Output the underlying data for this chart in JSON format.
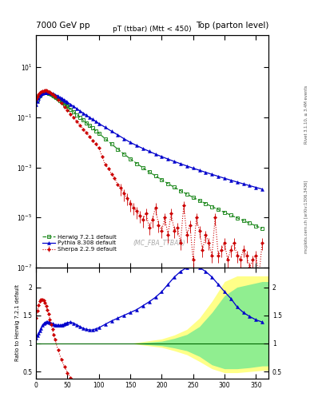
{
  "title_left": "7000 GeV pp",
  "title_right": "Top (parton level)",
  "plot_title": "pT (ttbar) (Mtt < 450)",
  "watermark": "(MC_FBA_TTBAR)",
  "right_label_top": "Rivet 3.1.10, ≥ 3.4M events",
  "right_label_bot": "mcplots.cern.ch [arXiv:1306.3436]",
  "ylabel_ratio": "Ratio to Herwig 7.2.1 default",
  "herwig_color": "#228B22",
  "pythia_color": "#0000CC",
  "sherpa_color": "#CC0000",
  "band_green": "#90EE90",
  "band_yellow": "#FFFF88",
  "xlim": [
    0,
    370
  ],
  "ylim_main": [
    1e-07,
    200
  ],
  "ratio_ylim": [
    0.38,
    2.35
  ],
  "ratio_yticks": [
    0.5,
    1.0,
    1.5,
    2.0
  ],
  "herwig_x": [
    0,
    2,
    4,
    6,
    8,
    10,
    12,
    14,
    16,
    18,
    20,
    22,
    24,
    26,
    28,
    30,
    32,
    34,
    36,
    38,
    40,
    42,
    44,
    46,
    48,
    50,
    55,
    60,
    65,
    70,
    75,
    80,
    85,
    90,
    95,
    100,
    110,
    120,
    130,
    140,
    150,
    160,
    170,
    180,
    190,
    200,
    210,
    220,
    230,
    240,
    250,
    260,
    270,
    280,
    290,
    300,
    310,
    320,
    330,
    340,
    350,
    360
  ],
  "herwig_y": [
    0.45,
    0.5,
    0.65,
    0.78,
    0.88,
    0.95,
    0.99,
    1.0,
    0.99,
    0.97,
    0.93,
    0.89,
    0.84,
    0.79,
    0.74,
    0.69,
    0.63,
    0.58,
    0.53,
    0.48,
    0.44,
    0.4,
    0.36,
    0.33,
    0.3,
    0.27,
    0.21,
    0.165,
    0.128,
    0.099,
    0.077,
    0.06,
    0.047,
    0.037,
    0.029,
    0.023,
    0.014,
    0.0086,
    0.0054,
    0.0034,
    0.0022,
    0.00145,
    0.00097,
    0.00066,
    0.00046,
    0.00032,
    0.000225,
    0.000161,
    0.000117,
    8.56e-05,
    6.34e-05,
    4.75e-05,
    3.58e-05,
    2.72e-05,
    2.08e-05,
    1.6e-05,
    1.24e-05,
    9.6e-06,
    7.5e-06,
    5.9e-06,
    4.6e-06,
    3.6e-06
  ],
  "pythia_x": [
    0,
    2,
    4,
    6,
    8,
    10,
    12,
    14,
    16,
    18,
    20,
    22,
    24,
    26,
    28,
    30,
    32,
    34,
    36,
    38,
    40,
    42,
    44,
    46,
    48,
    50,
    55,
    60,
    65,
    70,
    75,
    80,
    85,
    90,
    95,
    100,
    110,
    120,
    130,
    140,
    150,
    160,
    170,
    180,
    190,
    200,
    210,
    220,
    230,
    240,
    250,
    260,
    270,
    280,
    290,
    300,
    310,
    320,
    330,
    340,
    350,
    360
  ],
  "pythia_y": [
    0.32,
    0.42,
    0.58,
    0.72,
    0.84,
    0.92,
    0.97,
    1.0,
    1.0,
    0.99,
    0.97,
    0.94,
    0.91,
    0.87,
    0.83,
    0.79,
    0.74,
    0.7,
    0.65,
    0.61,
    0.57,
    0.53,
    0.5,
    0.46,
    0.43,
    0.4,
    0.33,
    0.27,
    0.22,
    0.18,
    0.148,
    0.122,
    0.1,
    0.083,
    0.069,
    0.057,
    0.04,
    0.028,
    0.02,
    0.014,
    0.01,
    0.0075,
    0.0057,
    0.0044,
    0.0034,
    0.0027,
    0.00215,
    0.00173,
    0.0014,
    0.00114,
    0.000934,
    0.00077,
    0.000637,
    0.000528,
    0.00044,
    0.000368,
    0.000309,
    0.00026,
    0.00022,
    0.000187,
    0.000159,
    0.000136
  ],
  "sherpa_x": [
    0,
    2,
    4,
    6,
    8,
    10,
    12,
    14,
    16,
    18,
    20,
    22,
    24,
    26,
    28,
    30,
    35,
    40,
    45,
    50,
    55,
    60,
    65,
    70,
    75,
    80,
    85,
    90,
    95,
    100,
    105,
    110,
    115,
    120,
    125,
    130,
    135,
    140,
    145,
    150,
    155,
    160,
    165,
    170,
    175,
    180,
    185,
    190,
    195,
    200,
    205,
    210,
    215,
    220,
    225,
    230,
    235,
    240,
    245,
    250,
    255,
    260,
    265,
    270,
    275,
    280,
    285,
    290,
    295,
    300,
    305,
    310,
    315,
    320,
    325,
    330,
    335,
    340,
    345,
    350,
    355,
    360
  ],
  "sherpa_y": [
    0.52,
    0.65,
    0.82,
    0.95,
    1.05,
    1.12,
    1.16,
    1.18,
    1.17,
    1.14,
    1.08,
    1.01,
    0.93,
    0.84,
    0.76,
    0.67,
    0.5,
    0.37,
    0.268,
    0.193,
    0.138,
    0.098,
    0.069,
    0.049,
    0.034,
    0.024,
    0.017,
    0.012,
    0.0085,
    0.006,
    0.0028,
    0.0013,
    0.0009,
    0.00055,
    0.00038,
    0.0002,
    0.00015,
    9e-05,
    6e-05,
    3.5e-05,
    2.5e-05,
    1.8e-05,
    1.2e-05,
    8e-06,
    1.5e-05,
    4e-06,
    8e-06,
    2.5e-05,
    5e-06,
    3e-06,
    1e-05,
    2e-06,
    1.5e-05,
    3e-06,
    4e-06,
    1e-06,
    3e-05,
    2e-06,
    5e-06,
    2e-07,
    1e-05,
    3e-06,
    5e-07,
    2e-06,
    1e-06,
    3e-07,
    1e-05,
    3e-07,
    5e-07,
    1e-06,
    2e-07,
    5e-07,
    1e-06,
    3e-07,
    2e-07,
    5e-07,
    3e-07,
    1e-07,
    2e-07,
    3e-07,
    5e-08,
    1e-06
  ],
  "sherpa_err": [
    0.04,
    0.04,
    0.04,
    0.04,
    0.04,
    0.04,
    0.04,
    0.04,
    0.04,
    0.04,
    0.04,
    0.04,
    0.04,
    0.04,
    0.04,
    0.04,
    0.04,
    0.04,
    0.04,
    0.04,
    0.04,
    0.04,
    0.04,
    0.04,
    0.04,
    0.04,
    0.04,
    0.04,
    0.04,
    0.04,
    0.04,
    0.04,
    0.04,
    0.04,
    0.04,
    0.04,
    0.5,
    0.5,
    0.5,
    0.5,
    0.5,
    0.5,
    0.5,
    0.5,
    0.5,
    0.5,
    0.5,
    0.5,
    0.5,
    0.5,
    0.5,
    0.5,
    0.5,
    0.5,
    0.5,
    0.5,
    0.5,
    0.5,
    0.5,
    0.5,
    0.5,
    0.5,
    0.5,
    0.5,
    0.5,
    0.5,
    0.5,
    0.5,
    0.5,
    0.5,
    0.5,
    0.5,
    0.5,
    0.5,
    0.5,
    0.5,
    0.5,
    0.5,
    0.5,
    0.5,
    0.5,
    0.5
  ],
  "ratio_pythia_x": [
    0,
    2,
    4,
    6,
    8,
    10,
    12,
    14,
    16,
    18,
    20,
    22,
    24,
    26,
    28,
    30,
    32,
    34,
    36,
    38,
    40,
    42,
    44,
    46,
    48,
    50,
    55,
    60,
    65,
    70,
    75,
    80,
    85,
    90,
    95,
    100,
    110,
    120,
    130,
    140,
    150,
    160,
    170,
    180,
    190,
    200,
    210,
    220,
    230,
    240,
    250,
    260,
    270,
    280,
    290,
    300,
    310,
    320,
    330,
    340,
    350,
    360
  ],
  "ratio_pythia_y": [
    1.1,
    1.14,
    1.18,
    1.22,
    1.27,
    1.32,
    1.35,
    1.37,
    1.38,
    1.38,
    1.38,
    1.37,
    1.36,
    1.35,
    1.34,
    1.33,
    1.32,
    1.32,
    1.32,
    1.32,
    1.33,
    1.33,
    1.34,
    1.35,
    1.36,
    1.37,
    1.38,
    1.36,
    1.33,
    1.3,
    1.27,
    1.25,
    1.24,
    1.24,
    1.26,
    1.28,
    1.34,
    1.4,
    1.45,
    1.5,
    1.55,
    1.6,
    1.67,
    1.74,
    1.82,
    1.92,
    2.05,
    2.18,
    2.28,
    2.35,
    2.38,
    2.35,
    2.28,
    2.18,
    2.05,
    1.92,
    1.8,
    1.65,
    1.55,
    1.48,
    1.42,
    1.38
  ],
  "ratio_sherpa_x": [
    0,
    2,
    4,
    6,
    8,
    10,
    12,
    14,
    16,
    18,
    20,
    22,
    24,
    26,
    28,
    30,
    35,
    40,
    45,
    50,
    55,
    60,
    65,
    70,
    75,
    80,
    85,
    90,
    95,
    100,
    105,
    110
  ],
  "ratio_sherpa_y": [
    1.45,
    1.58,
    1.68,
    1.75,
    1.78,
    1.78,
    1.76,
    1.72,
    1.67,
    1.6,
    1.52,
    1.43,
    1.34,
    1.25,
    1.16,
    1.07,
    0.88,
    0.72,
    0.59,
    0.48,
    0.39,
    0.32,
    0.26,
    0.21,
    0.175,
    0.145,
    0.12,
    0.1,
    0.085,
    0.072,
    0.055,
    0.42
  ],
  "band_x": [
    150,
    200,
    220,
    240,
    260,
    280,
    300,
    320,
    340,
    360,
    370
  ],
  "band_yel_hi": [
    1.0,
    1.08,
    1.15,
    1.25,
    1.45,
    1.75,
    2.1,
    2.2,
    2.2,
    2.2,
    2.2
  ],
  "band_yel_lo": [
    1.0,
    0.93,
    0.87,
    0.8,
    0.68,
    0.55,
    0.48,
    0.48,
    0.5,
    0.52,
    0.52
  ],
  "band_grn_hi": [
    1.0,
    1.04,
    1.09,
    1.16,
    1.3,
    1.55,
    1.85,
    2.0,
    2.05,
    2.1,
    2.1
  ],
  "band_grn_lo": [
    1.0,
    0.96,
    0.92,
    0.87,
    0.77,
    0.62,
    0.55,
    0.55,
    0.57,
    0.6,
    0.6
  ]
}
